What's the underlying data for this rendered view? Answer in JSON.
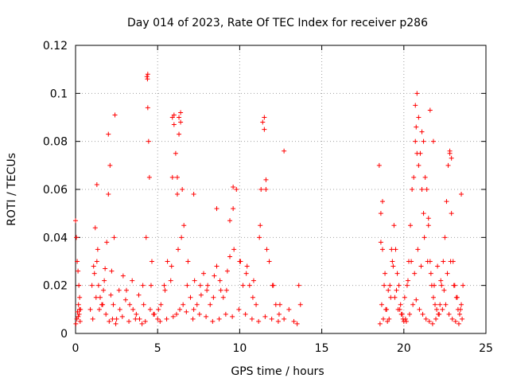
{
  "chart_data": {
    "type": "scatter",
    "title": "Day 014 of 2023, Rate Of TEC Index for receiver p286",
    "xlabel": "GPS time / hours",
    "ylabel": "ROTI / TECUs",
    "xlim": [
      0,
      25
    ],
    "ylim": [
      0,
      0.12
    ],
    "x_ticks": [
      "0",
      "5",
      "10",
      "15",
      "20",
      "25"
    ],
    "y_ticks": [
      "0",
      "0.02",
      "0.04",
      "0.06",
      "0.08",
      "0.1",
      "0.12"
    ],
    "grid": true,
    "marker": "plus",
    "marker_color": "#ff0000",
    "series": [
      {
        "x": [
          0.0,
          0.05,
          0.1,
          0.15,
          0.2,
          0.25,
          0.3,
          0.12,
          0.18,
          0.08,
          0.22,
          0.28,
          0.02,
          0.16,
          0.24,
          0.9,
          1.0,
          1.1,
          1.2,
          1.3,
          1.4,
          1.5,
          1.6,
          1.7,
          1.8,
          1.9,
          2.0,
          2.1,
          2.2,
          2.3,
          2.5,
          2.7,
          2.9,
          3.1,
          3.3,
          3.5,
          3.7,
          3.9,
          4.1,
          4.3,
          4.35,
          4.4,
          4.45,
          4.5,
          4.6,
          4.8,
          5.0,
          5.2,
          5.4,
          5.6,
          5.8,
          5.9,
          6.0,
          6.1,
          6.2,
          6.3,
          6.4,
          6.5,
          6.6,
          6.8,
          7.0,
          7.2,
          7.4,
          7.6,
          7.8,
          8.0,
          8.2,
          8.4,
          8.6,
          8.8,
          9.0,
          9.2,
          9.4,
          9.6,
          9.8,
          10.0,
          10.2,
          10.4,
          10.6,
          10.8,
          11.0,
          11.2,
          11.3,
          11.4,
          11.5,
          11.6,
          11.8,
          12.0,
          12.2,
          12.4,
          12.7,
          13.0,
          13.3,
          13.5,
          13.6,
          13.7,
          1.05,
          1.25,
          1.45,
          1.65,
          1.85,
          2.05,
          2.25,
          2.45,
          2.85,
          3.25,
          3.65,
          4.05,
          4.25,
          4.55,
          4.75,
          5.15,
          5.55,
          5.95,
          6.15,
          6.35,
          6.55,
          6.75,
          7.15,
          7.55,
          7.95,
          8.35,
          8.75,
          9.15,
          9.55,
          9.95,
          10.35,
          10.75,
          11.15,
          11.55,
          11.95,
          12.35,
          1.15,
          1.35,
          1.75,
          2.15,
          2.35,
          2.65,
          3.05,
          3.45,
          3.85,
          4.15,
          4.65,
          5.05,
          5.45,
          5.85,
          6.25,
          6.45,
          6.85,
          7.25,
          7.65,
          8.05,
          8.45,
          8.85,
          9.25,
          9.65,
          10.05,
          10.45,
          10.85,
          11.25,
          11.65,
          12.05,
          12.45,
          2.4,
          2.0,
          1.3,
          4.4,
          4.38,
          6.0,
          6.3,
          6.4,
          11.5,
          11.6,
          12.7,
          9.6,
          9.4,
          7.2,
          8.6,
          6.2,
          5.9,
          18.5,
          18.6,
          18.7,
          18.8,
          18.9,
          19.0,
          19.1,
          19.2,
          19.3,
          19.4,
          19.5,
          19.6,
          19.7,
          19.8,
          19.9,
          20.0,
          20.1,
          20.2,
          20.3,
          20.4,
          20.5,
          20.6,
          20.7,
          20.8,
          20.9,
          21.0,
          21.1,
          21.2,
          21.3,
          21.4,
          21.5,
          21.6,
          21.7,
          21.8,
          21.9,
          22.0,
          22.1,
          22.2,
          22.3,
          22.4,
          22.5,
          22.6,
          22.7,
          22.8,
          22.9,
          23.0,
          23.1,
          23.2,
          23.3,
          23.4,
          23.5,
          23.6,
          18.55,
          18.75,
          18.95,
          19.15,
          19.35,
          19.55,
          19.75,
          19.95,
          20.15,
          20.35,
          20.55,
          20.75,
          20.95,
          21.15,
          21.35,
          21.55,
          21.75,
          21.95,
          22.15,
          22.35,
          22.55,
          22.75,
          22.95,
          23.15,
          23.35,
          23.55,
          18.65,
          18.85,
          19.05,
          19.25,
          19.45,
          19.65,
          19.85,
          20.05,
          20.25,
          20.45,
          20.65,
          20.85,
          21.05,
          21.25,
          21.45,
          21.65,
          21.85,
          22.05,
          22.25,
          22.45,
          22.65,
          22.85,
          23.05,
          23.25,
          23.45,
          18.6,
          20.7,
          20.75,
          20.8,
          21.1,
          21.2,
          21.6,
          21.8,
          22.8,
          22.9,
          23.5,
          20.9,
          21.5,
          18.7
        ],
        "y": [
          0.047,
          0.04,
          0.03,
          0.026,
          0.02,
          0.015,
          0.01,
          0.009,
          0.012,
          0.006,
          0.008,
          0.005,
          0.004,
          0.007,
          0.01,
          0.01,
          0.02,
          0.028,
          0.044,
          0.03,
          0.02,
          0.015,
          0.012,
          0.018,
          0.027,
          0.038,
          0.058,
          0.07,
          0.026,
          0.012,
          0.006,
          0.01,
          0.024,
          0.018,
          0.012,
          0.01,
          0.008,
          0.006,
          0.02,
          0.04,
          0.107,
          0.094,
          0.08,
          0.065,
          0.02,
          0.008,
          0.006,
          0.012,
          0.02,
          0.03,
          0.022,
          0.09,
          0.087,
          0.075,
          0.065,
          0.09,
          0.088,
          0.06,
          0.045,
          0.02,
          0.015,
          0.01,
          0.012,
          0.02,
          0.025,
          0.018,
          0.012,
          0.015,
          0.028,
          0.022,
          0.015,
          0.018,
          0.032,
          0.052,
          0.06,
          0.03,
          0.02,
          0.025,
          0.02,
          0.015,
          0.012,
          0.04,
          0.06,
          0.088,
          0.085,
          0.06,
          0.03,
          0.02,
          0.012,
          0.008,
          0.006,
          0.01,
          0.005,
          0.004,
          0.02,
          0.012,
          0.006,
          0.015,
          0.01,
          0.012,
          0.008,
          0.005,
          0.006,
          0.004,
          0.007,
          0.005,
          0.006,
          0.004,
          0.005,
          0.01,
          0.008,
          0.005,
          0.006,
          0.007,
          0.008,
          0.01,
          0.012,
          0.009,
          0.006,
          0.008,
          0.007,
          0.005,
          0.006,
          0.008,
          0.007,
          0.01,
          0.008,
          0.006,
          0.005,
          0.007,
          0.006,
          0.005,
          0.025,
          0.035,
          0.022,
          0.016,
          0.04,
          0.018,
          0.014,
          0.022,
          0.016,
          0.012,
          0.03,
          0.01,
          0.018,
          0.028,
          0.035,
          0.04,
          0.03,
          0.022,
          0.016,
          0.02,
          0.024,
          0.018,
          0.026,
          0.035,
          0.03,
          0.028,
          0.022,
          0.045,
          0.035,
          0.02,
          0.012,
          0.091,
          0.083,
          0.062,
          0.108,
          0.106,
          0.091,
          0.083,
          0.092,
          0.09,
          0.064,
          0.076,
          0.061,
          0.047,
          0.058,
          0.052,
          0.058,
          0.065,
          0.07,
          0.05,
          0.035,
          0.02,
          0.01,
          0.005,
          0.006,
          0.015,
          0.03,
          0.045,
          0.035,
          0.025,
          0.02,
          0.012,
          0.008,
          0.005,
          0.006,
          0.02,
          0.03,
          0.045,
          0.06,
          0.065,
          0.08,
          0.1,
          0.09,
          0.075,
          0.06,
          0.05,
          0.065,
          0.06,
          0.045,
          0.03,
          0.02,
          0.015,
          0.012,
          0.01,
          0.008,
          0.012,
          0.02,
          0.03,
          0.04,
          0.055,
          0.07,
          0.075,
          0.05,
          0.03,
          0.02,
          0.015,
          0.01,
          0.008,
          0.012,
          0.02,
          0.004,
          0.006,
          0.01,
          0.02,
          0.028,
          0.018,
          0.01,
          0.006,
          0.005,
          0.008,
          0.012,
          0.014,
          0.01,
          0.008,
          0.006,
          0.005,
          0.004,
          0.006,
          0.008,
          0.01,
          0.012,
          0.008,
          0.006,
          0.005,
          0.004,
          0.006,
          0.012,
          0.025,
          0.018,
          0.035,
          0.015,
          0.01,
          0.008,
          0.015,
          0.022,
          0.03,
          0.025,
          0.035,
          0.028,
          0.04,
          0.03,
          0.025,
          0.02,
          0.028,
          0.022,
          0.018,
          0.025,
          0.03,
          0.02,
          0.015,
          0.01,
          0.038,
          0.095,
          0.086,
          0.075,
          0.084,
          0.08,
          0.093,
          0.08,
          0.076,
          0.073,
          0.058,
          0.07,
          0.048,
          0.055
        ]
      }
    ]
  }
}
